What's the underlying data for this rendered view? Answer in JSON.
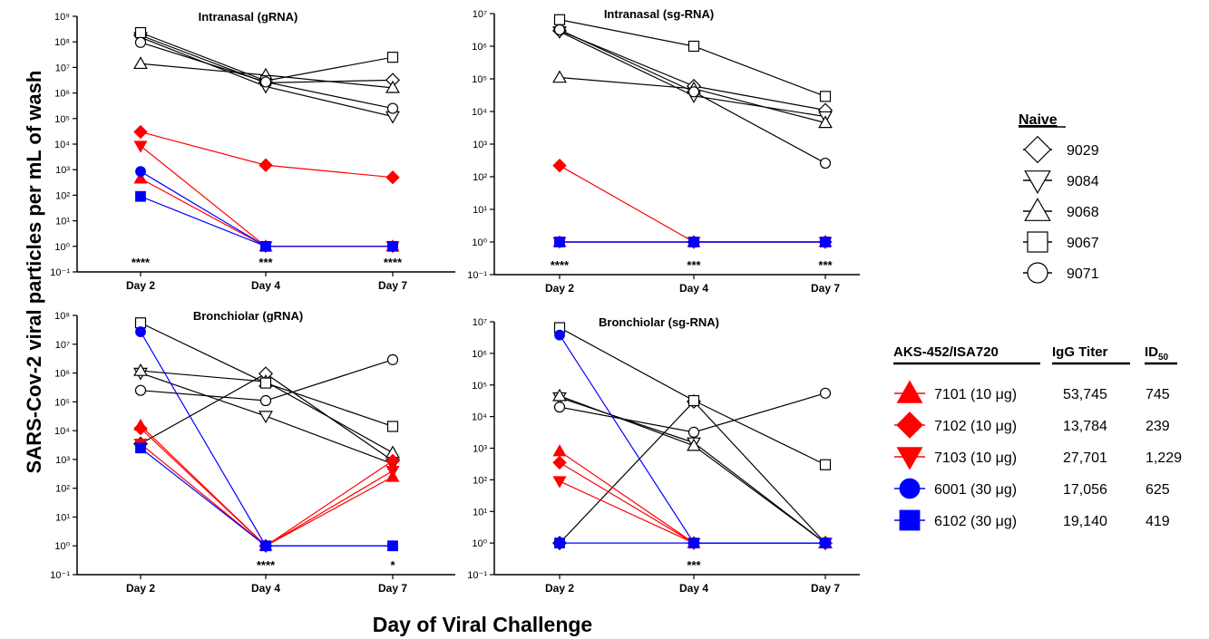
{
  "figure": {
    "y_axis_title": "SARS-Cov-2 viral particles per mL of wash",
    "x_axis_title": "Day of Viral Challenge",
    "x_categories": [
      "Day 2",
      "Day 4",
      "Day 7"
    ]
  },
  "colors": {
    "naive": "#000000",
    "vaccinated": "#ff0000",
    "adjuvant30": "#0000ff"
  },
  "legend_naive": {
    "title": "Naive",
    "items": [
      {
        "id": "9029",
        "marker": "diamond-open"
      },
      {
        "id": "9084",
        "marker": "triangle-down-open"
      },
      {
        "id": "9068",
        "marker": "triangle-up-open"
      },
      {
        "id": "9067",
        "marker": "square-open"
      },
      {
        "id": "9071",
        "marker": "circle-open"
      }
    ]
  },
  "legend_vaccine": {
    "headers": [
      "AKS-452/ISA720",
      "IgG Titer",
      "ID50"
    ],
    "id50_main": "ID",
    "id50_sub": "50",
    "rows": [
      {
        "label": "7101 (10 μg)",
        "igg": "53,745",
        "id50": "745",
        "marker": "triangle-up-filled",
        "color": "#ff0000"
      },
      {
        "label": "7102 (10 μg)",
        "igg": "13,784",
        "id50": "239",
        "marker": "diamond-filled",
        "color": "#ff0000"
      },
      {
        "label": "7103 (10 μg)",
        "igg": "27,701",
        "id50": "1,229",
        "marker": "triangle-down-filled",
        "color": "#ff0000"
      },
      {
        "label": "6001 (30 μg)",
        "igg": "17,056",
        "id50": "625",
        "marker": "circle-filled",
        "color": "#0000ff"
      },
      {
        "label": "6102 (30 μg)",
        "igg": "19,140",
        "id50": "419",
        "marker": "square-filled",
        "color": "#0000ff"
      }
    ]
  },
  "chart_data": [
    {
      "type": "line",
      "title": "Intranasal (gRNA)",
      "yscale": "log",
      "ylim": [
        0.1,
        1000000000
      ],
      "x": [
        "Day 2",
        "Day 4",
        "Day 7"
      ],
      "significance": [
        "****",
        "***",
        "****"
      ],
      "series": [
        {
          "name": "9029",
          "marker": "diamond-open",
          "color": "#000000",
          "values": [
            180000000,
            2500000,
            3200000
          ]
        },
        {
          "name": "9084",
          "marker": "triangle-down-open",
          "color": "#000000",
          "values": [
            150000000,
            1800000,
            120000
          ]
        },
        {
          "name": "9068",
          "marker": "triangle-up-open",
          "color": "#000000",
          "values": [
            14000000,
            5000000,
            1600000
          ]
        },
        {
          "name": "9067",
          "marker": "square-open",
          "color": "#000000",
          "values": [
            230000000,
            3000000,
            25000000
          ]
        },
        {
          "name": "9071",
          "marker": "circle-open",
          "color": "#000000",
          "values": [
            95000000,
            2700000,
            250000
          ]
        },
        {
          "name": "7101",
          "marker": "triangle-up-filled",
          "color": "#ff0000",
          "values": [
            450,
            1,
            1
          ]
        },
        {
          "name": "7102",
          "marker": "diamond-filled",
          "color": "#ff0000",
          "values": [
            30000,
            1500,
            500
          ]
        },
        {
          "name": "7103",
          "marker": "triangle-down-filled",
          "color": "#ff0000",
          "values": [
            8500,
            1,
            1
          ]
        },
        {
          "name": "6001",
          "marker": "circle-filled",
          "color": "#0000ff",
          "values": [
            850,
            1,
            1
          ]
        },
        {
          "name": "6102",
          "marker": "square-filled",
          "color": "#0000ff",
          "values": [
            90,
            1,
            1
          ]
        }
      ]
    },
    {
      "type": "line",
      "title": "Intranasal (sg-RNA)",
      "yscale": "log",
      "ylim": [
        0.1,
        10000000
      ],
      "x": [
        "Day 2",
        "Day 4",
        "Day 7"
      ],
      "significance": [
        "****",
        "***",
        "***"
      ],
      "series": [
        {
          "name": "9029",
          "marker": "diamond-open",
          "color": "#000000",
          "values": [
            3000000,
            60000,
            11000
          ]
        },
        {
          "name": "9084",
          "marker": "triangle-down-open",
          "color": "#000000",
          "values": [
            2800000,
            30000,
            7000
          ]
        },
        {
          "name": "9068",
          "marker": "triangle-up-open",
          "color": "#000000",
          "values": [
            110000,
            50000,
            4500
          ]
        },
        {
          "name": "9067",
          "marker": "square-open",
          "color": "#000000",
          "values": [
            6500000,
            1000000,
            29000
          ]
        },
        {
          "name": "9071",
          "marker": "circle-open",
          "color": "#000000",
          "values": [
            3200000,
            40000,
            260
          ]
        },
        {
          "name": "7101",
          "marker": "triangle-up-filled",
          "color": "#ff0000",
          "values": [
            1,
            1,
            1
          ]
        },
        {
          "name": "7102",
          "marker": "diamond-filled",
          "color": "#ff0000",
          "values": [
            220,
            1,
            1
          ]
        },
        {
          "name": "7103",
          "marker": "triangle-down-filled",
          "color": "#ff0000",
          "values": [
            1,
            1,
            1
          ]
        },
        {
          "name": "6001",
          "marker": "circle-filled",
          "color": "#0000ff",
          "values": [
            1,
            1,
            1
          ]
        },
        {
          "name": "6102",
          "marker": "square-filled",
          "color": "#0000ff",
          "values": [
            1,
            1,
            1
          ]
        }
      ]
    },
    {
      "type": "line",
      "title": "Bronchiolar (gRNA)",
      "yscale": "log",
      "ylim": [
        0.1,
        100000000
      ],
      "x": [
        "Day 2",
        "Day 4",
        "Day 7"
      ],
      "significance": [
        "",
        "****",
        "*"
      ],
      "series": [
        {
          "name": "9029",
          "marker": "diamond-open",
          "color": "#000000",
          "values": [
            3500,
            950000,
            900
          ]
        },
        {
          "name": "9084",
          "marker": "triangle-down-open",
          "color": "#000000",
          "values": [
            1000000,
            32000,
            700
          ]
        },
        {
          "name": "9068",
          "marker": "triangle-up-open",
          "color": "#000000",
          "values": [
            1200000,
            500000,
            1700
          ]
        },
        {
          "name": "9067",
          "marker": "square-open",
          "color": "#000000",
          "values": [
            55000000,
            450000,
            14000
          ]
        },
        {
          "name": "9071",
          "marker": "circle-open",
          "color": "#000000",
          "values": [
            250000,
            110000,
            2900000
          ]
        },
        {
          "name": "7101",
          "marker": "triangle-up-filled",
          "color": "#ff0000",
          "values": [
            15000,
            1,
            250
          ]
        },
        {
          "name": "7102",
          "marker": "diamond-filled",
          "color": "#ff0000",
          "values": [
            12000,
            1,
            900
          ]
        },
        {
          "name": "7103",
          "marker": "triangle-down-filled",
          "color": "#ff0000",
          "values": [
            3500,
            1,
            400
          ]
        },
        {
          "name": "6001",
          "marker": "circle-filled",
          "color": "#0000ff",
          "values": [
            27000000,
            1,
            1
          ]
        },
        {
          "name": "6102",
          "marker": "square-filled",
          "color": "#0000ff",
          "values": [
            2500,
            1,
            1
          ]
        }
      ]
    },
    {
      "type": "line",
      "title": "Bronchiolar (sg-RNA)",
      "yscale": "log",
      "ylim": [
        0.1,
        10000000
      ],
      "x": [
        "Day 2",
        "Day 4",
        "Day 7"
      ],
      "significance": [
        "",
        "***",
        ""
      ],
      "series": [
        {
          "name": "9029",
          "marker": "diamond-open",
          "color": "#000000",
          "values": [
            1,
            30000,
            1
          ]
        },
        {
          "name": "9084",
          "marker": "triangle-down-open",
          "color": "#000000",
          "values": [
            40000,
            1500,
            1
          ]
        },
        {
          "name": "9068",
          "marker": "triangle-up-open",
          "color": "#000000",
          "values": [
            45000,
            1200,
            1
          ]
        },
        {
          "name": "9067",
          "marker": "square-open",
          "color": "#000000",
          "values": [
            6500000,
            32000,
            300
          ]
        },
        {
          "name": "9071",
          "marker": "circle-open",
          "color": "#000000",
          "values": [
            20000,
            3200,
            55000
          ]
        },
        {
          "name": "7101",
          "marker": "triangle-up-filled",
          "color": "#ff0000",
          "values": [
            800,
            1,
            1
          ]
        },
        {
          "name": "7102",
          "marker": "diamond-filled",
          "color": "#ff0000",
          "values": [
            350,
            1,
            1
          ]
        },
        {
          "name": "7103",
          "marker": "triangle-down-filled",
          "color": "#ff0000",
          "values": [
            90,
            1,
            1
          ]
        },
        {
          "name": "6001",
          "marker": "circle-filled",
          "color": "#0000ff",
          "values": [
            3800000,
            1,
            1
          ]
        },
        {
          "name": "6102",
          "marker": "square-filled",
          "color": "#0000ff",
          "values": [
            1,
            1,
            1
          ]
        }
      ]
    }
  ]
}
